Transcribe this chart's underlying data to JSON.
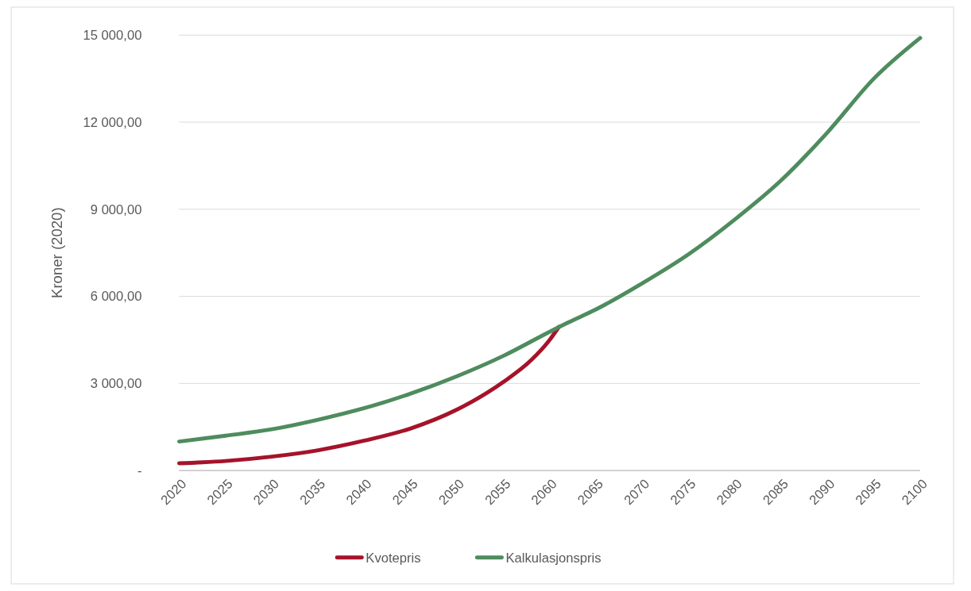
{
  "chart_data": {
    "type": "line",
    "ylabel": "Kroner (2020)",
    "xlim": [
      2020,
      2100
    ],
    "xticks": [
      2020,
      2025,
      2030,
      2035,
      2040,
      2045,
      2050,
      2055,
      2060,
      2065,
      2070,
      2075,
      2080,
      2085,
      2090,
      2095,
      2100
    ],
    "ylim": [
      0,
      15000
    ],
    "yticks": [
      {
        "value": 0,
        "label": "-"
      },
      {
        "value": 3000,
        "label": "3 000,00"
      },
      {
        "value": 6000,
        "label": "6 000,00"
      },
      {
        "value": 9000,
        "label": "9 000,00"
      },
      {
        "value": 12000,
        "label": "12 000,00"
      },
      {
        "value": 15000,
        "label": "15 000,00"
      }
    ],
    "grid": "y",
    "legend": "bottom",
    "line_style": "solid",
    "marker": "none",
    "series": [
      {
        "name": "Kvotepris",
        "color": "#a5132a",
        "x": [
          2020,
          2025,
          2030,
          2035,
          2040,
          2045,
          2050,
          2055,
          2058,
          2060,
          2061
        ],
        "values": [
          250,
          330,
          480,
          700,
          1030,
          1450,
          2100,
          3050,
          3800,
          4500,
          4950
        ]
      },
      {
        "name": "Kalkulasjonspris",
        "color": "#4e8c5e",
        "x": [
          2020,
          2025,
          2030,
          2035,
          2040,
          2045,
          2050,
          2055,
          2060,
          2062,
          2065,
          2070,
          2075,
          2080,
          2085,
          2090,
          2095,
          2100
        ],
        "values": [
          1000,
          1200,
          1420,
          1750,
          2150,
          2650,
          3250,
          3950,
          4780,
          5100,
          5550,
          6450,
          7450,
          8650,
          10000,
          11650,
          13500,
          14900
        ]
      }
    ]
  }
}
